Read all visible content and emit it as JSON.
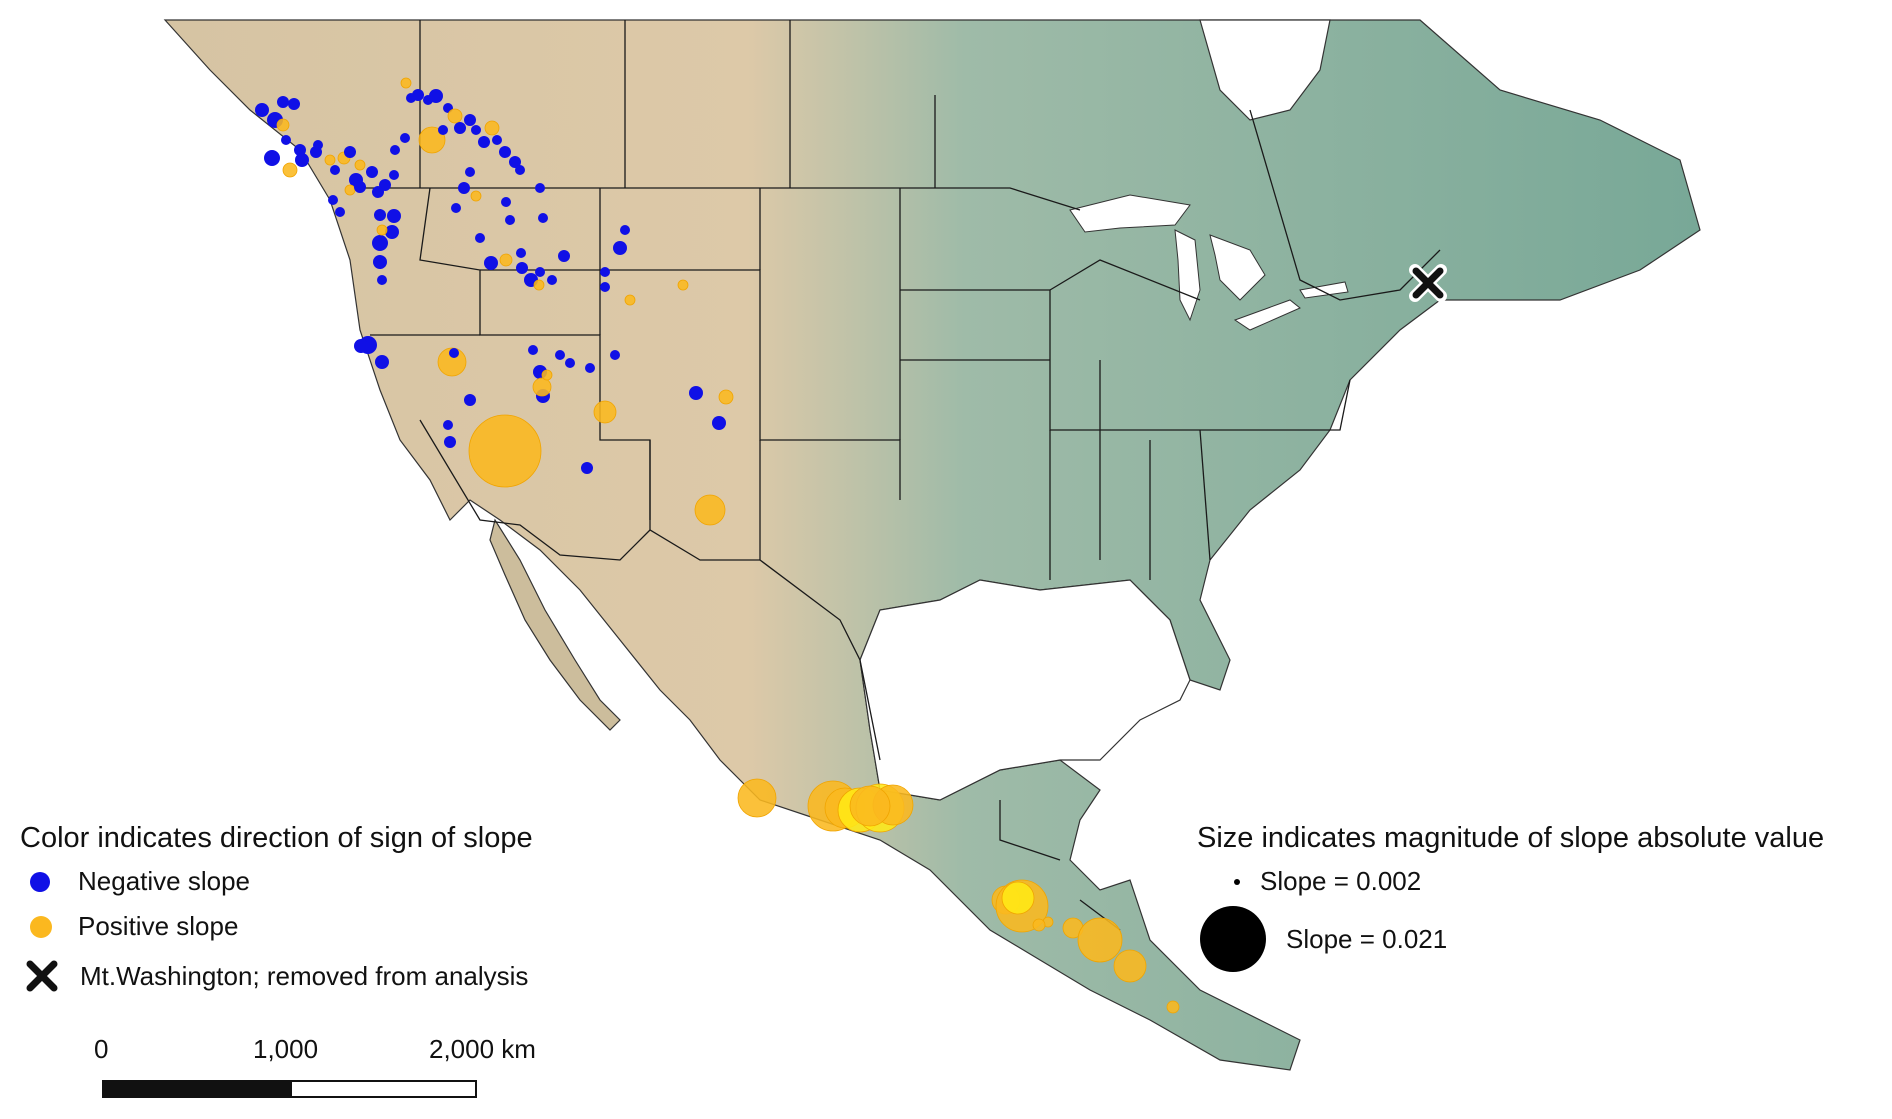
{
  "colors": {
    "negative": "#1010e6",
    "positive": "#fbb81f",
    "positive_bright": "#ffe816",
    "ocean": "#ffffff",
    "land_green": "#7fae9e",
    "land_tan": "#d9c6a5",
    "border": "#1a1a1a",
    "marker": "#111111"
  },
  "legend_direction": {
    "title": "Color indicates direction of sign of slope",
    "items": [
      {
        "label": "Negative slope",
        "color": "#1010e6",
        "icon": "blue-circle-icon"
      },
      {
        "label": "Positive slope",
        "color": "#fbb81f",
        "icon": "orange-circle-icon"
      },
      {
        "label": "Mt.Washington; removed from analysis",
        "icon": "x-mark-icon"
      }
    ]
  },
  "legend_size": {
    "title": "Size indicates magnitude of slope absolute value",
    "items": [
      {
        "label": "Slope = 0.002",
        "slope": 0.002
      },
      {
        "label": "Slope = 0.021",
        "slope": 0.021
      }
    ]
  },
  "scale_bar": {
    "ticks": [
      "0",
      "1,000",
      "2,000 km"
    ],
    "segments": [
      {
        "from": 0,
        "to": 1000,
        "fill": "#111111"
      },
      {
        "from": 1000,
        "to": 2000,
        "fill": "#ffffff"
      }
    ]
  },
  "excluded_site": {
    "name": "Mt.Washington",
    "lon": -71.3,
    "lat": 44.27
  }
}
